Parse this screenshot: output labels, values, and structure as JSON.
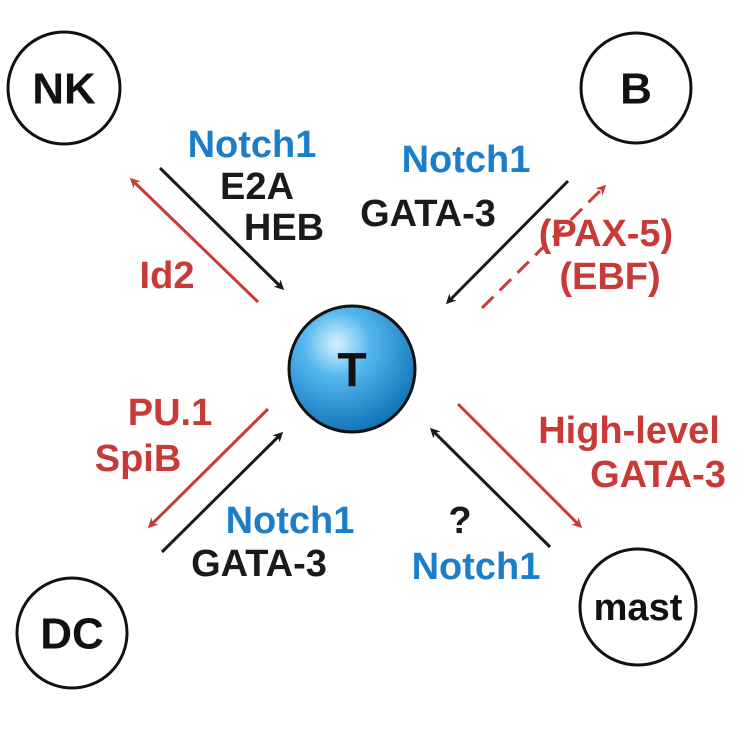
{
  "nodes": {
    "center": "T",
    "nk": "NK",
    "b": "B",
    "dc": "DC",
    "mast": "mast"
  },
  "factors": {
    "nk_in_notch1": "Notch1",
    "nk_in_e2a": "E2A",
    "nk_in_heb": "HEB",
    "nk_out_id2": "Id2",
    "b_in_notch1": "Notch1",
    "b_in_gata3": "GATA-3",
    "b_out_pax5": "(PAX-5)",
    "b_out_ebf": "(EBF)",
    "dc_out_pu1": "PU.1",
    "dc_out_spib": "SpiB",
    "dc_in_notch1": "Notch1",
    "dc_in_gata3": "GATA-3",
    "mast_out_highlevel": "High-level",
    "mast_out_gata3": "GATA-3",
    "mast_in_question": "?",
    "mast_in_notch1": "Notch1"
  },
  "colors": {
    "blue": "#1c7ec8",
    "dark": "#1a1a1a",
    "red": "#c83a35",
    "center_sphere_light": "#cdeefe",
    "center_sphere_dark": "#0f7fc6"
  }
}
